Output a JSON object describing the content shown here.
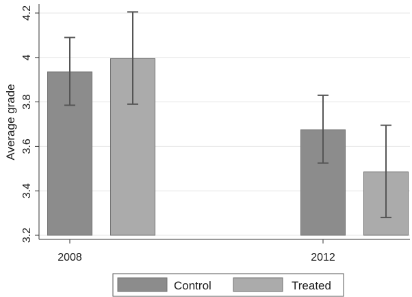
{
  "chart_data": {
    "type": "bar",
    "categories": [
      "2008",
      "2012"
    ],
    "series": [
      {
        "name": "Control",
        "color": "#8c8c8c",
        "values": [
          3.935,
          3.675
        ],
        "ci_low": [
          3.785,
          3.525
        ],
        "ci_high": [
          4.09,
          3.83
        ]
      },
      {
        "name": "Treated",
        "color": "#ababab",
        "values": [
          3.995,
          3.485
        ],
        "ci_low": [
          3.79,
          3.28
        ],
        "ci_high": [
          4.205,
          3.695
        ]
      }
    ],
    "ylabel": "Average grade",
    "xlabel": "",
    "ylim": [
      3.2,
      4.2
    ],
    "yticks": [
      "3.2",
      "3.4",
      "3.6",
      "3.8",
      "4",
      "4.2"
    ],
    "grid": true,
    "legend_position": "bottom",
    "error_bar_color": "#555555",
    "bar_edge_color": "#707070",
    "grid_color": "#e6e6e6"
  }
}
